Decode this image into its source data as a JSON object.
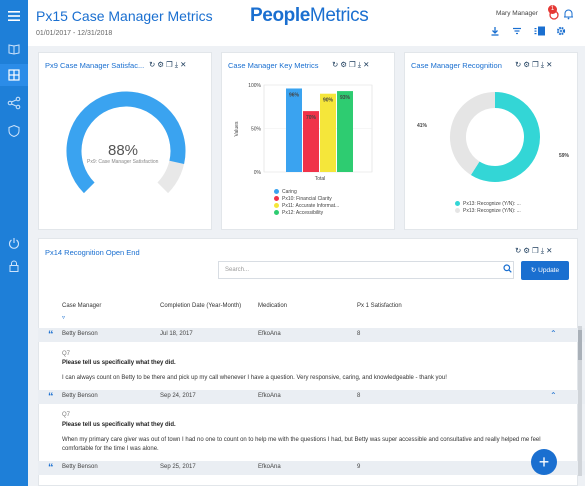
{
  "app": {
    "title": "Px15 Case Manager Metrics",
    "date_range": "01/01/2017 - 12/31/2018",
    "logo_bold": "People",
    "logo_thin": "Metrics",
    "user_name": "Mary Manager",
    "notification_count": "1",
    "accent_color": "#1a6fd0"
  },
  "sidebar": {
    "items": [
      "menu-icon",
      "book-icon",
      "grid-icon",
      "share-icon",
      "shield-icon",
      "power-icon",
      "lock-icon"
    ]
  },
  "cards": {
    "satisfaction": {
      "title": "Px9 Case Manager Satisfac...",
      "value": "88%",
      "label": "Px9: Case Manager Satisfaction",
      "fraction": 0.88
    },
    "key_metrics": {
      "title": "Case Manager Key Metrics"
    },
    "recognition": {
      "title": "Case Manager Recognition"
    }
  },
  "chart_data": [
    {
      "type": "bar",
      "title": "",
      "ylabel": "Values",
      "xlabel": "Total",
      "categories": [
        "Total"
      ],
      "ylim": [
        0,
        100
      ],
      "yticks": [
        "100%",
        "50%",
        "0%"
      ],
      "series": [
        {
          "name": "Caring",
          "values": [
            96
          ],
          "label": "96%",
          "color": "#3aa3f0"
        },
        {
          "name": "Px10: Financial Clarity",
          "values": [
            70
          ],
          "label": "70%",
          "color": "#f0334a"
        },
        {
          "name": "Px11: Accurate Informat...",
          "values": [
            90
          ],
          "label": "90%",
          "color": "#f5e63a"
        },
        {
          "name": "Px12: Accessibility",
          "values": [
            93
          ],
          "label": "93%",
          "color": "#2ecc71"
        }
      ]
    },
    {
      "type": "pie",
      "title": "",
      "slices": [
        {
          "name": "Px13: Recognize (Y/N): ...",
          "value": 59,
          "label": "59%",
          "color": "#33d6d6"
        },
        {
          "name": "Px13: Recognize (Y/N): ...",
          "value": 41,
          "label": "41%",
          "color": "#e5e5e5"
        }
      ]
    }
  ],
  "recognition_table": {
    "title": "Px14 Recognition Open End",
    "search_placeholder": "Search...",
    "update_label": "Update",
    "columns": [
      "Case Manager",
      "Completion Date (Year-Month)",
      "Medication",
      "Px 1 Satisfaction"
    ],
    "rows": [
      {
        "manager": "Betty Benson",
        "date": "Jul 18, 2017",
        "medication": "EfkoAna",
        "satisfaction": "8",
        "q_code": "Q7",
        "question": "Please tell us specifically what they did.",
        "response": "I can always count on Betty to be there and pick up my call whenever I have a question. Very responsive, caring, and knowledgeable - thank you!"
      },
      {
        "manager": "Betty Benson",
        "date": "Sep 24, 2017",
        "medication": "EfkoAna",
        "satisfaction": "8",
        "q_code": "Q7",
        "question": "Please tell us specifically what they did.",
        "response_line1": "When my primary care giver was out of town I had no one to count on to help me with the questions I had, but Betty was super accessible and consultative and really helped me feel",
        "response_line2": "comfortable for the time I was alone."
      },
      {
        "manager": "Betty Benson",
        "date": "Sep 25, 2017",
        "medication": "EfkoAna",
        "satisfaction": "9"
      }
    ]
  }
}
